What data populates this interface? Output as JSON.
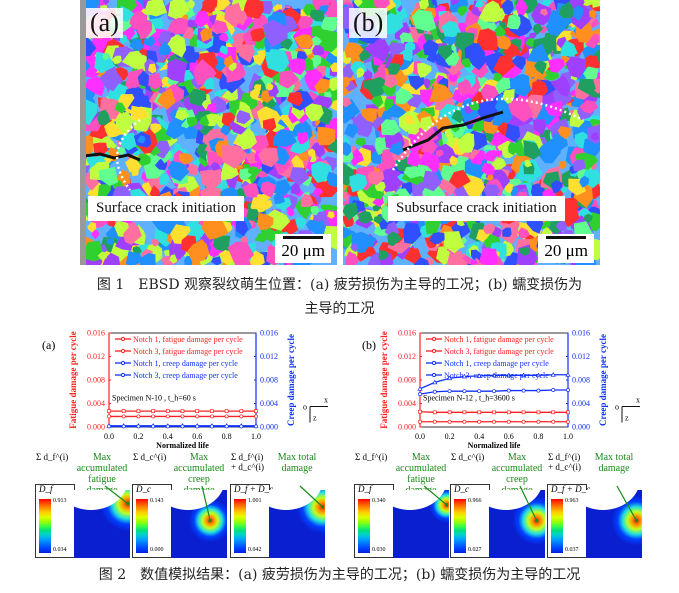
{
  "figure1": {
    "panel_a": {
      "tag": "(a)",
      "label": "Surface crack initiation",
      "scale_bar": "20 μm"
    },
    "panel_b": {
      "tag": "(b)",
      "label": "Subsurface crack initiation",
      "scale_bar": "20 μm"
    },
    "caption_line1": "图 1　EBSD 观察裂纹萌生位置：(a) 疲劳损伤为主导的工况；(b) 蠕变损伤为",
    "caption_line2": "主导的工况"
  },
  "chart_data": [
    {
      "type": "line",
      "panel": "(a)",
      "xlabel": "Normalized life",
      "ylabel_left": "Fatigue damage per cycle",
      "ylabel_right": "Creep damage per cycle",
      "xlim": [
        0,
        1.0
      ],
      "ylim_left": [
        0,
        0.016
      ],
      "ylim_right": [
        0,
        0.016
      ],
      "xticks": [
        "0.0",
        "0.2",
        "0.4",
        "0.6",
        "0.8",
        "1.0"
      ],
      "yticks": [
        "0.000",
        "0.004",
        "0.008",
        "0.012",
        "0.016"
      ],
      "annotation": "Specimen N-10 , t_h=60 s",
      "axes_icon": {
        "x": "x",
        "z": "z",
        "origin": "o"
      },
      "x": [
        0,
        0.1,
        0.2,
        0.3,
        0.4,
        0.5,
        0.6,
        0.7,
        0.8,
        0.9,
        1.0
      ],
      "series": [
        {
          "name": "Notch 1, fatigue damage per cycle",
          "axis": "left",
          "color": "#ff2020",
          "marker": "square",
          "values": [
            0.0027,
            0.0027,
            0.0027,
            0.0027,
            0.0027,
            0.0027,
            0.0027,
            0.0027,
            0.0027,
            0.0027,
            0.0027
          ]
        },
        {
          "name": "Notch 3, fatigue damage per cycle",
          "axis": "left",
          "color": "#ff2020",
          "marker": "circle",
          "values": [
            0.0018,
            0.0018,
            0.0018,
            0.0018,
            0.0018,
            0.0018,
            0.0018,
            0.0018,
            0.0018,
            0.0018,
            0.0018
          ]
        },
        {
          "name": "Notch 1, creep damage per cycle",
          "axis": "right",
          "color": "#1030ff",
          "marker": "triangle",
          "values": [
            0.0002,
            0.0002,
            0.0002,
            0.0002,
            0.0002,
            0.0002,
            0.0002,
            0.0002,
            0.0002,
            0.0002,
            0.0002
          ]
        },
        {
          "name": "Notch 3, creep damage per cycle",
          "axis": "right",
          "color": "#1030ff",
          "marker": "circle",
          "values": [
            0.0001,
            0.0001,
            0.0001,
            0.0001,
            0.0001,
            0.0001,
            0.0001,
            0.0001,
            0.0001,
            0.0001,
            0.0001
          ]
        }
      ]
    },
    {
      "type": "line",
      "panel": "(b)",
      "xlabel": "Normalized life",
      "ylabel_left": "Fatigue damage per cycle",
      "ylabel_right": "Creep damage per cycle",
      "xlim": [
        0,
        1.0
      ],
      "ylim_left": [
        0,
        0.016
      ],
      "ylim_right": [
        0,
        0.016
      ],
      "xticks": [
        "0.0",
        "0.2",
        "0.4",
        "0.6",
        "0.8",
        "1.0"
      ],
      "yticks": [
        "0.000",
        "0.004",
        "0.008",
        "0.012",
        "0.016"
      ],
      "annotation": "Specimen N-12 , t_h=3600 s",
      "axes_icon": {
        "x": "x",
        "z": "z",
        "origin": "o"
      },
      "x": [
        0,
        0.1,
        0.2,
        0.3,
        0.4,
        0.5,
        0.6,
        0.7,
        0.8,
        0.9,
        1.0
      ],
      "series": [
        {
          "name": "Notch 1, fatigue damage per cycle",
          "axis": "left",
          "color": "#ff2020",
          "marker": "square",
          "values": [
            0.0026,
            0.0025,
            0.0025,
            0.0025,
            0.0025,
            0.0025,
            0.0025,
            0.0025,
            0.0025,
            0.0025,
            0.0025
          ]
        },
        {
          "name": "Notch 3, fatigue damage per cycle",
          "axis": "left",
          "color": "#ff2020",
          "marker": "circle",
          "values": [
            0.0009,
            0.0009,
            0.0009,
            0.0009,
            0.0009,
            0.0009,
            0.0009,
            0.0009,
            0.0009,
            0.0009,
            0.0009
          ]
        },
        {
          "name": "Notch 1, creep damage per cycle",
          "axis": "right",
          "color": "#1030ff",
          "marker": "triangle",
          "values": [
            0.0065,
            0.0076,
            0.0083,
            0.0086,
            0.0087,
            0.0088,
            0.0088,
            0.0088,
            0.0088,
            0.0089,
            0.0089
          ]
        },
        {
          "name": "Notch 3, creep damage per cycle",
          "axis": "right",
          "color": "#1030ff",
          "marker": "circle",
          "values": [
            0.0056,
            0.006,
            0.0061,
            0.0061,
            0.0061,
            0.0061,
            0.0062,
            0.0062,
            0.0062,
            0.0063,
            0.0063
          ]
        }
      ]
    }
  ],
  "figure2": {
    "panel_a": [
      {
        "formula": "Σ d_f^(i)",
        "denominator": "D_f",
        "annotation": "Max accumulated fatigue damage",
        "max": "0.913",
        "min": "0.034"
      },
      {
        "formula": "Σ d_c^(i)",
        "denominator": "D_c",
        "annotation": "Max accumulated creep damage",
        "max": "0.143",
        "min": "0.000"
      },
      {
        "formula": "Σ d_f^(i) + d_c^(i)",
        "denominator": "D_f + D_c",
        "annotation": "Max total damage",
        "max": "1.001",
        "min": "0.042"
      }
    ],
    "panel_b": [
      {
        "formula": "Σ d_f^(i)",
        "denominator": "D_f",
        "annotation": "Max accumulated fatigue damage",
        "max": "0.340",
        "min": "0.030"
      },
      {
        "formula": "Σ d_c^(i)",
        "denominator": "D_c",
        "annotation": "Max accumulated creep damage",
        "max": "0.966",
        "min": "0.027"
      },
      {
        "formula": "Σ d_f^(i) + d_c^(i)",
        "denominator": "D_f + D_c",
        "annotation": "Max total damage",
        "max": "0.963",
        "min": "0.037"
      }
    ],
    "caption": "图 2　数值模拟结果：(a) 疲劳损伤为主导的工况；(b) 蠕变损伤为主导的工况"
  }
}
